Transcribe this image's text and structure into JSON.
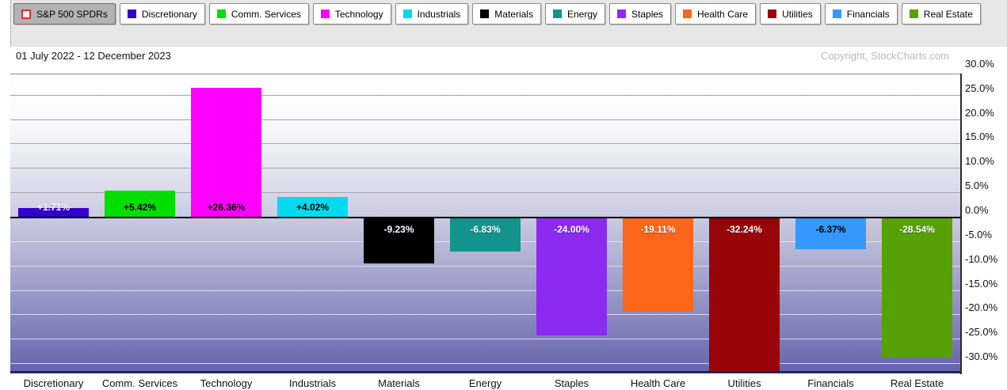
{
  "legend": {
    "benchmark": {
      "label": "S&P 500 SPDRs",
      "checkbox_border": "#ef2929",
      "selected_bg": "#b3b3b3"
    },
    "items": [
      {
        "label": "Discretionary",
        "color": "#3300cc"
      },
      {
        "label": "Comm. Services",
        "color": "#00dd00"
      },
      {
        "label": "Technology",
        "color": "#ff00ff"
      },
      {
        "label": "Industrials",
        "color": "#00daee"
      },
      {
        "label": "Materials",
        "color": "#000000"
      },
      {
        "label": "Energy",
        "color": "#13938d"
      },
      {
        "label": "Staples",
        "color": "#8b2af0"
      },
      {
        "label": "Health Care",
        "color": "#fb661a"
      },
      {
        "label": "Utilities",
        "color": "#980407"
      },
      {
        "label": "Financials",
        "color": "#3598fc"
      },
      {
        "label": "Real Estate",
        "color": "#57a008"
      }
    ]
  },
  "header": {
    "date_range": "01 July 2022 - 12 December 2023",
    "copyright": "Copyright, StockCharts.com"
  },
  "chart_data": {
    "type": "bar",
    "title": "01 July 2022 - 12 December 2023",
    "categories": [
      "Discretionary",
      "Comm. Services",
      "Technology",
      "Industrials",
      "Materials",
      "Energy",
      "Staples",
      "Health Care",
      "Utilities",
      "Financials",
      "Real Estate"
    ],
    "values": [
      1.71,
      5.42,
      26.36,
      4.02,
      -9.23,
      -6.83,
      -24.0,
      -19.11,
      -32.24,
      -6.37,
      -28.54
    ],
    "bar_labels": [
      "+1.71%",
      "+5.42%",
      "+26.36%",
      "+4.02%",
      "-9.23%",
      "-6.83%",
      "-24.00%",
      "-19.11%",
      "-32.24%",
      "-6.37%",
      "-28.54%"
    ],
    "bar_colors": [
      "#3300cc",
      "#00dd00",
      "#ff00ff",
      "#00daee",
      "#000000",
      "#13938d",
      "#8b2af0",
      "#fb661a",
      "#980407",
      "#3598fc",
      "#57a008"
    ],
    "bar_label_colors": [
      "#ffffff",
      "#000000",
      "#000000",
      "#000000",
      "#ffffff",
      "#ffffff",
      "#ffffff",
      "#ffffff",
      "#ffffff",
      "#000000",
      "#ffffff"
    ],
    "y_ticks": [
      {
        "label": "30.0%",
        "value": 30
      },
      {
        "label": "25.0%",
        "value": 25
      },
      {
        "label": "20.0%",
        "value": 20
      },
      {
        "label": "15.0%",
        "value": 15
      },
      {
        "label": "10.0%",
        "value": 10
      },
      {
        "label": "5.0%",
        "value": 5
      },
      {
        "label": "0.0%",
        "value": 0
      },
      {
        "label": "-5.0%",
        "value": -5
      },
      {
        "label": "-10.0%",
        "value": -10
      },
      {
        "label": "-15.0%",
        "value": -15
      },
      {
        "label": "-20.0%",
        "value": -20
      },
      {
        "label": "-25.0%",
        "value": -25
      },
      {
        "label": "-30.0%",
        "value": -30
      }
    ],
    "ylim": [
      -32.1,
      29.3
    ],
    "grid": true,
    "zero_line": true,
    "legend_position": "top",
    "xlabel": "",
    "ylabel": ""
  }
}
